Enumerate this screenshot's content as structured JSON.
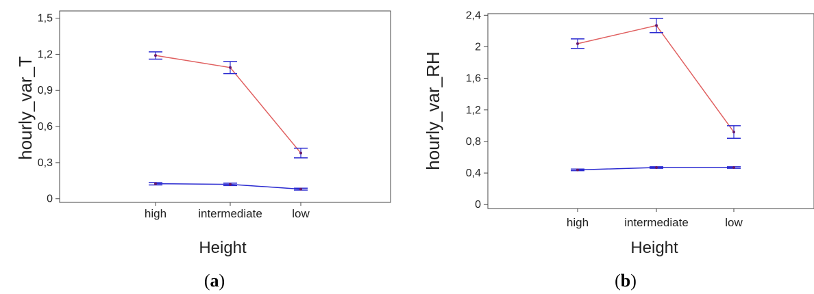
{
  "chart_data": [
    {
      "type": "line",
      "panel_label": "a",
      "ylabel": "hourly_var_T",
      "xlabel": "Height",
      "categories": [
        "high",
        "intermediate",
        "low"
      ],
      "yticks": [
        "0",
        "0,3",
        "0,6",
        "0,9",
        "1,2",
        "1,5"
      ],
      "ylim": [
        -0.03,
        1.56
      ],
      "grid": false,
      "series": [
        {
          "color": "#e06060",
          "values": [
            1.19,
            1.09,
            0.38
          ],
          "err": [
            0.03,
            0.05,
            0.04
          ]
        },
        {
          "color": "#2a2ad0",
          "values": [
            0.125,
            0.12,
            0.08
          ],
          "err": [
            0.01,
            0.01,
            0.008
          ]
        }
      ]
    },
    {
      "type": "line",
      "panel_label": "b",
      "ylabel": "hourly_var_RH",
      "xlabel": "Height",
      "categories": [
        "high",
        "intermediate",
        "low"
      ],
      "yticks": [
        "0",
        "0,4",
        "0,8",
        "1,2",
        "1,6",
        "2",
        "2,4"
      ],
      "ylim": [
        -0.05,
        2.42
      ],
      "grid": false,
      "series": [
        {
          "color": "#e06060",
          "values": [
            2.04,
            2.27,
            0.92
          ],
          "err": [
            0.06,
            0.09,
            0.08
          ]
        },
        {
          "color": "#2a2ad0",
          "values": [
            0.44,
            0.47,
            0.47
          ],
          "err": [
            0.01,
            0.01,
            0.01
          ]
        }
      ]
    }
  ]
}
